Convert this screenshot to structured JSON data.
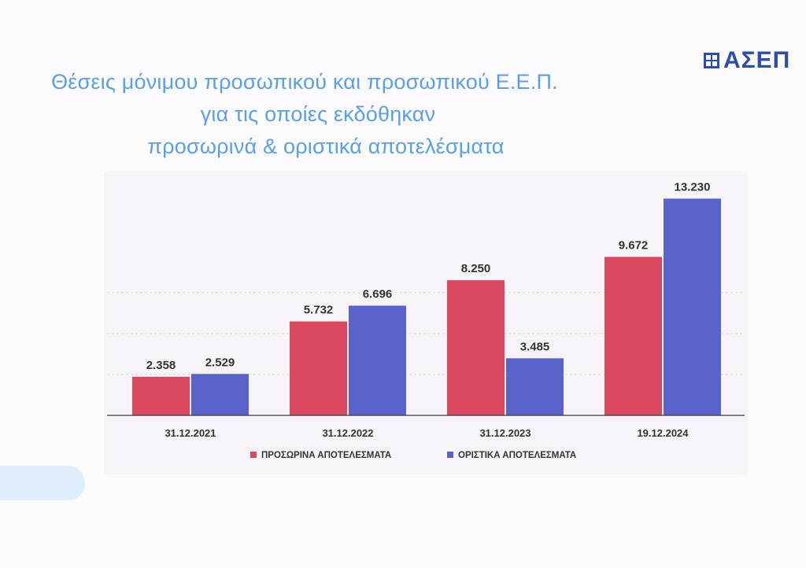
{
  "title_lines": [
    "Θέσεις μόνιμου προσωπικού και προσωπικού Ε.Ε.Π.",
    "για τις οποίες εκδόθηκαν",
    "προσωρινά & οριστικά αποτελέσματα"
  ],
  "logo": {
    "text": "ΑΣΕΠ",
    "icon": "asep-logo-icon",
    "color": "#2a4fa8"
  },
  "colors": {
    "title": "#5aa0e6",
    "series_prosorina": "#d9485f",
    "series_oristika": "#5a63c9"
  },
  "chart_data": {
    "type": "bar",
    "categories": [
      "31.12.2021",
      "31.12.2022",
      "31.12.2023",
      "19.12.2024"
    ],
    "series": [
      {
        "name": "ΠΡΟΣΩΡΙΝΑ ΑΠΟΤΕΛΕΣΜΑΤΑ",
        "values": [
          2358,
          5732,
          8250,
          9672
        ],
        "labels": [
          "2.358",
          "5.732",
          "8.250",
          "9.672"
        ],
        "color": "#d9485f"
      },
      {
        "name": "ΟΡΙΣΤΙΚΑ ΑΠΟΤΕΛΕΣΜΑΤΑ",
        "values": [
          2529,
          6696,
          3485,
          13230
        ],
        "labels": [
          "2.529",
          "6.696",
          "3.485",
          "13.230"
        ],
        "color": "#5a63c9"
      }
    ],
    "ylim": [
      0,
      14500
    ],
    "grid": true,
    "legend_position": "bottom"
  }
}
